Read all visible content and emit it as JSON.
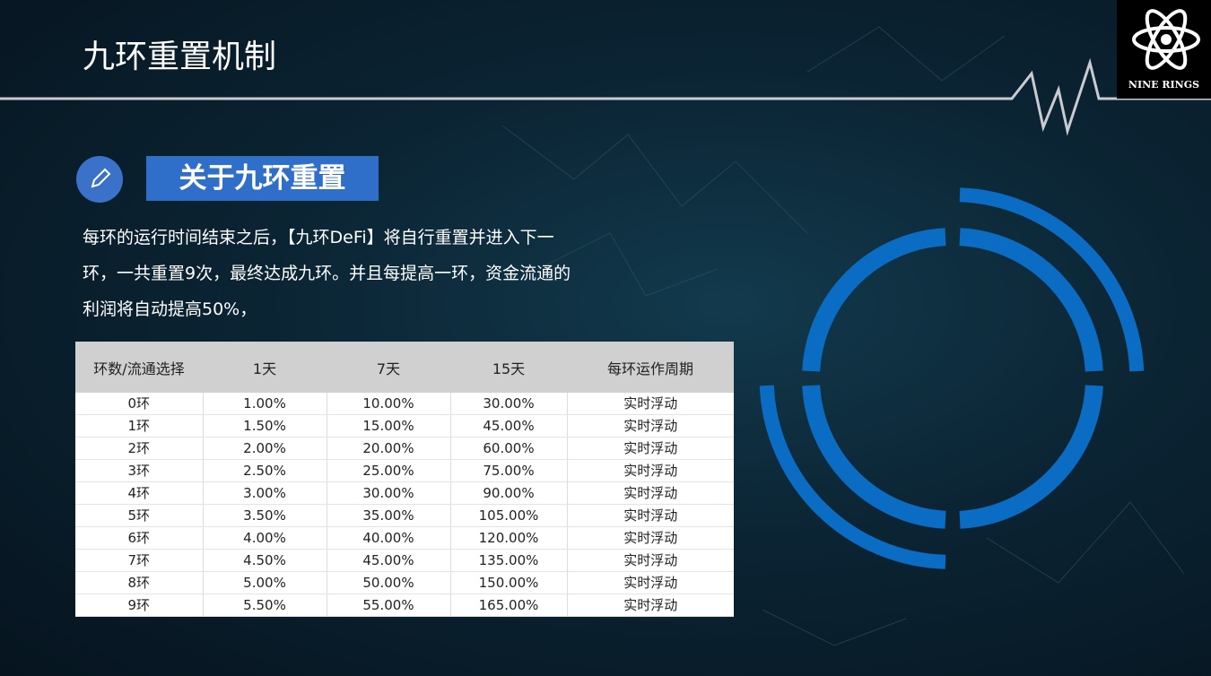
{
  "header": {
    "title": "九环重置机制",
    "logo_text": "NINE RINGS"
  },
  "section": {
    "heading": "关于九环重置",
    "paragraph_lines": [
      "每环的运行时间结束之后，【九环DeFi】将自行重置并进入下一",
      "环，一共重置9次，最终达成九环。并且每提高一环，资金流通的",
      "利润将自动提高50%，"
    ]
  },
  "table": {
    "headers": [
      "环数/流通选择",
      "1天",
      "7天",
      "15天",
      "每环运作周期"
    ],
    "rows": [
      [
        "0环",
        "1.00%",
        "10.00%",
        "30.00%",
        "实时浮动"
      ],
      [
        "1环",
        "1.50%",
        "15.00%",
        "45.00%",
        "实时浮动"
      ],
      [
        "2环",
        "2.00%",
        "20.00%",
        "60.00%",
        "实时浮动"
      ],
      [
        "3环",
        "2.50%",
        "25.00%",
        "75.00%",
        "实时浮动"
      ],
      [
        "4环",
        "3.00%",
        "30.00%",
        "90.00%",
        "实时浮动"
      ],
      [
        "5环",
        "3.50%",
        "35.00%",
        "105.00%",
        "实时浮动"
      ],
      [
        "6环",
        "4.00%",
        "40.00%",
        "120.00%",
        "实时浮动"
      ],
      [
        "7环",
        "4.50%",
        "45.00%",
        "135.00%",
        "实时浮动"
      ],
      [
        "8环",
        "5.00%",
        "50.00%",
        "150.00%",
        "实时浮动"
      ],
      [
        "9环",
        "5.50%",
        "55.00%",
        "165.00%",
        "实时浮动"
      ]
    ]
  }
}
